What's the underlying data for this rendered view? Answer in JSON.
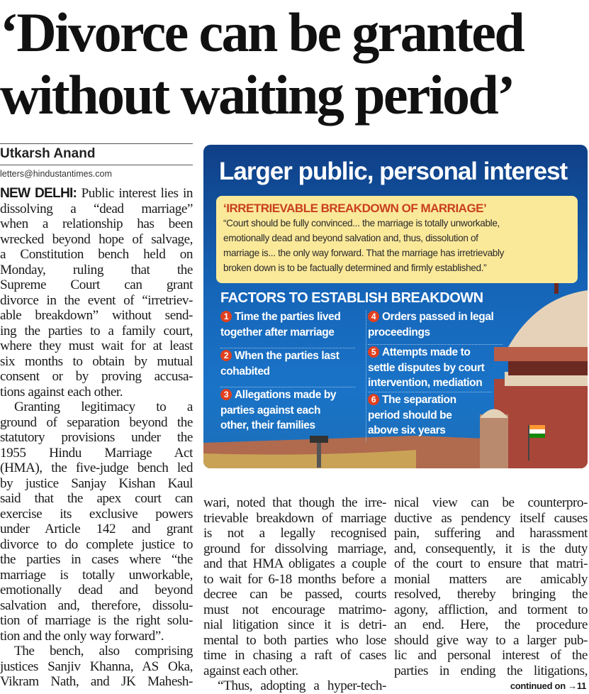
{
  "headline": {
    "line1": "‘Divorce can be granted",
    "line2": "without waiting period’"
  },
  "byline": {
    "author": "Utkarsh Anand",
    "email": "letters@hindustantimes.com"
  },
  "dateline": "NEW DELHI:",
  "col1": [
    " Public interest lies in",
    "dissolving a “dead marriage”",
    "when a relationship has been",
    "wrecked beyond hope of salvage,",
    "a Constitution bench held on",
    "Monday, ruling that the",
    "Supreme Court can grant",
    "divorce in the event of “irretriev-",
    "able breakdown” without send-",
    "ing the parties to a family court,",
    "where they must wait for at least",
    "six months to obtain by mutual",
    "consent or by proving accusa-",
    "tions against each other.",
    "Granting legitimacy to a",
    "ground of separation beyond the",
    "statutory provisions under the",
    "1955 Hindu Marriage Act",
    "(HMA), the five-judge bench led",
    "by justice Sanjay Kishan Kaul",
    "said that the apex court can",
    "exercise its exclusive powers",
    "under Article 142 and grant",
    "divorce to do complete justice to",
    "the parties in cases where “the",
    "marriage is totally unworkable,",
    "emotionally dead and beyond",
    "salvation and, therefore, dissolu-",
    "tion of marriage is the right solu-",
    "tion and the only way forward”.",
    "The bench, also comprising",
    "justices Sanjiv Khanna, AS Oka,",
    "Vikram Nath, and JK Mahesh-"
  ],
  "col2": [
    "wari, noted that though the irre-",
    "trievable breakdown of marriage",
    "is not a legally recognised",
    "ground for dissolving marriage,",
    "and that HMA obligates a couple",
    "to wait for 6-18 months before a",
    "decree can be passed, courts",
    "must not encourage matrimo-",
    "nial litigation since it is detri-",
    "mental to both parties who lose",
    "time in chasing a raft of cases",
    "against each other.",
    "“Thus, adopting a hyper-tech-"
  ],
  "col3": [
    "nical view can be counterpro-",
    "ductive as pendency itself causes",
    "pain, suffering and harassment",
    "and, consequently, it is the duty",
    "of the court to ensure that matri-",
    "monial matters are amicably",
    "resolved, thereby bringing the",
    "agony, affliction, and torment to",
    "an end. Here, the procedure",
    "should give way to a larger pub-",
    "lic and personal interest of the",
    "parties in ending the litigations,"
  ],
  "continued": "continued on →11",
  "infobox": {
    "title": "Larger public, personal interest",
    "quote_title": "‘IRRETRIEVABLE BREAKDOWN OF MARRIAGE’",
    "quote_lines": [
      "“Court should be fully convinced... the marriage is totally unworkable,",
      "emotionally dead and beyond salvation and, thus, dissolution of",
      "marriage is... the only way forward. That the marriage has irretrievably",
      "broken down is to be factually determined and firmly established.”"
    ],
    "factors_title": "FACTORS TO ESTABLISH BREAKDOWN",
    "factors": [
      {
        "num": "1",
        "lines": [
          "Time the parties lived",
          "together after marriage"
        ]
      },
      {
        "num": "2",
        "lines": [
          "When the parties last",
          "cohabited"
        ]
      },
      {
        "num": "3",
        "lines": [
          "Allegations made by",
          "parties against each",
          "other, their families"
        ]
      },
      {
        "num": "4",
        "lines": [
          "Orders passed in legal",
          "proceedings"
        ]
      },
      {
        "num": "5",
        "lines": [
          "Attempts made to",
          "settle disputes by court",
          "intervention, mediation"
        ]
      },
      {
        "num": "6",
        "lines": [
          "The separation",
          "period should be",
          "above six years"
        ]
      }
    ],
    "colors": {
      "background": "#1565b8",
      "quote_bg": "#fbe99a",
      "accent": "#c8401e",
      "number_badge": "#e0401f"
    }
  }
}
